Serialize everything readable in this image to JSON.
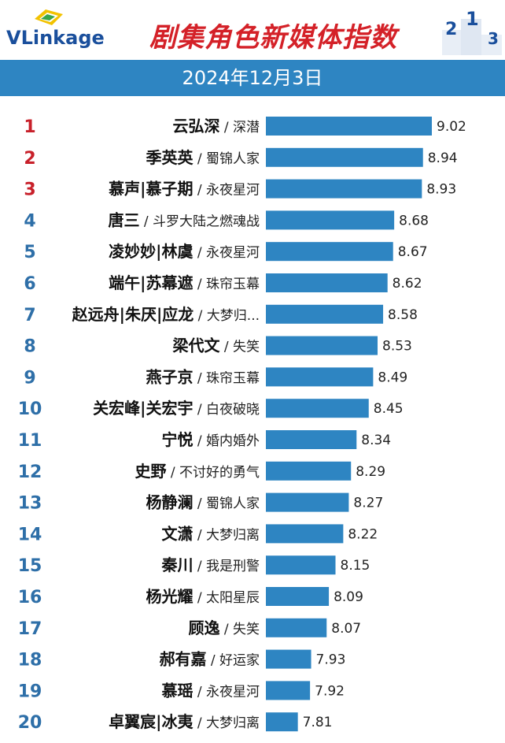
{
  "brand": {
    "logo_text": "VLinkage"
  },
  "header": {
    "title": "剧集角色新媒体指数",
    "date": "2024年12月3日"
  },
  "podium": {
    "labels": [
      "2",
      "1",
      "3"
    ]
  },
  "colors": {
    "bar": "#2e85c2",
    "rank_top": "#c8202a",
    "rank_other": "#2e6fa8",
    "date_bar": "#2e85c2",
    "title": "#d42128"
  },
  "chart_data": {
    "type": "bar",
    "orientation": "horizontal",
    "title": "剧集角色新媒体指数",
    "subtitle": "2024年12月3日",
    "ranks": [
      "1",
      "2",
      "3",
      "4",
      "5",
      "6",
      "7",
      "8",
      "9",
      "10",
      "11",
      "12",
      "13",
      "14",
      "15",
      "16",
      "17",
      "18",
      "19",
      "20"
    ],
    "categories": [
      "云弘深",
      "季英英",
      "慕声|慕子期",
      "唐三",
      "凌妙妙|林虞",
      "端午|苏幕遮",
      "赵远舟|朱厌|应龙",
      "梁代文",
      "燕子京",
      "关宏峰|关宏宇",
      "宁悦",
      "史野",
      "杨静澜",
      "文潇",
      "秦川",
      "杨光耀",
      "顾逸",
      "郝有嘉",
      "慕瑶",
      "卓翼宸|冰夷"
    ],
    "shows": [
      "深潜",
      "蜀锦人家",
      "永夜星河",
      "斗罗大陆之燃魂战",
      "永夜星河",
      "珠帘玉幕",
      "大梦归...",
      "失笑",
      "珠帘玉幕",
      "白夜破晓",
      "婚内婚外",
      "不讨好的勇气",
      "蜀锦人家",
      "大梦归离",
      "我是刑警",
      "太阳星辰",
      "失笑",
      "好运家",
      "永夜星河",
      "大梦归离"
    ],
    "values": [
      9.02,
      8.94,
      8.93,
      8.68,
      8.67,
      8.62,
      8.58,
      8.53,
      8.49,
      8.45,
      8.34,
      8.29,
      8.27,
      8.22,
      8.15,
      8.09,
      8.07,
      7.93,
      7.92,
      7.81
    ],
    "value_labels": [
      "9.02",
      "8.94",
      "8.93",
      "8.68",
      "8.67",
      "8.62",
      "8.58",
      "8.53",
      "8.49",
      "8.45",
      "8.34",
      "8.29",
      "8.27",
      "8.22",
      "8.15",
      "8.09",
      "8.07",
      "7.93",
      "7.92",
      "7.81"
    ],
    "xlim": [
      7.5,
      9.02
    ],
    "grid": false,
    "legend": "none"
  }
}
